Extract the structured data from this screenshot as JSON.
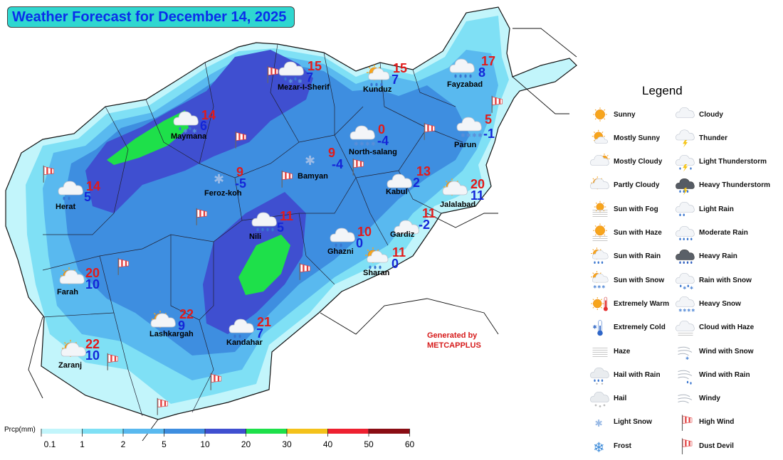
{
  "title": "Weather Forecast for December 14, 2025",
  "credit": {
    "line1": "Generated by",
    "line2": "METCAPPLUS"
  },
  "cities": [
    {
      "name": "Mezar-I-Sherif",
      "max": "15",
      "min": "7",
      "icon": "rain-with-snow-icon"
    },
    {
      "name": "Kunduz",
      "max": "15",
      "min": "7",
      "icon": "sun-with-rain-icon"
    },
    {
      "name": "Fayzabad",
      "max": "17",
      "min": "8",
      "icon": "moderate-rain-icon"
    },
    {
      "name": "Maymana",
      "max": "14",
      "min": "6",
      "icon": "rain-with-snow-icon"
    },
    {
      "name": "North-salang",
      "max": "0",
      "min": "-4",
      "icon": "heavy-snow-icon"
    },
    {
      "name": "Parun",
      "max": "5",
      "min": "-1",
      "icon": "heavy-snow-icon"
    },
    {
      "name": "Bamyan",
      "max": "9",
      "min": "-4",
      "icon": "light-snow-icon"
    },
    {
      "name": "Feroz-koh",
      "max": "9",
      "min": "-5",
      "icon": "light-snow-icon"
    },
    {
      "name": "Herat",
      "max": "14",
      "min": "5",
      "icon": "light-rain-icon"
    },
    {
      "name": "Kabul",
      "max": "13",
      "min": "2",
      "icon": "cloudy-icon"
    },
    {
      "name": "Jalalabad",
      "max": "20",
      "min": "11",
      "icon": "partly-cloudy-icon"
    },
    {
      "name": "Nili",
      "max": "11",
      "min": "5",
      "icon": "moderate-rain-icon"
    },
    {
      "name": "Gardiz",
      "max": "11",
      "min": "-2",
      "icon": "cloudy-icon"
    },
    {
      "name": "Ghazni",
      "max": "10",
      "min": "0",
      "icon": "light-rain-icon"
    },
    {
      "name": "Sharan",
      "max": "11",
      "min": "0",
      "icon": "sun-with-rain-icon"
    },
    {
      "name": "Farah",
      "max": "20",
      "min": "10",
      "icon": "partly-cloudy-icon"
    },
    {
      "name": "Lashkargah",
      "max": "22",
      "min": "9",
      "icon": "partly-cloudy-icon"
    },
    {
      "name": "Kandahar",
      "max": "21",
      "min": "7",
      "icon": "light-rain-icon"
    },
    {
      "name": "Zaranj",
      "max": "22",
      "min": "10",
      "icon": "partly-cloudy-icon"
    }
  ],
  "legend": {
    "title": "Legend",
    "items": [
      {
        "label": "Sunny",
        "icon": "sunny-icon"
      },
      {
        "label": "Cloudy",
        "icon": "cloudy-icon"
      },
      {
        "label": "Mostly Sunny",
        "icon": "mostly-sunny-icon"
      },
      {
        "label": "Thunder",
        "icon": "thunder-icon"
      },
      {
        "label": "Mostly Cloudy",
        "icon": "mostly-cloudy-icon"
      },
      {
        "label": "Light Thunderstorm",
        "icon": "light-thunderstorm-icon"
      },
      {
        "label": "Partly Cloudy",
        "icon": "partly-cloudy-icon"
      },
      {
        "label": "Heavy Thunderstorm",
        "icon": "heavy-thunderstorm-icon"
      },
      {
        "label": "Sun with Fog",
        "icon": "sun-with-fog-icon"
      },
      {
        "label": "Light Rain",
        "icon": "light-rain-icon"
      },
      {
        "label": "Sun with Haze",
        "icon": "sun-with-haze-icon"
      },
      {
        "label": "Moderate Rain",
        "icon": "moderate-rain-icon"
      },
      {
        "label": "Sun with Rain",
        "icon": "sun-with-rain-icon"
      },
      {
        "label": "Heavy Rain",
        "icon": "heavy-rain-icon"
      },
      {
        "label": "Sun with Snow",
        "icon": "sun-with-snow-icon"
      },
      {
        "label": "Rain with Snow",
        "icon": "rain-with-snow-icon"
      },
      {
        "label": "Extremely Warm",
        "icon": "extremely-warm-icon"
      },
      {
        "label": "Heavy Snow",
        "icon": "heavy-snow-icon"
      },
      {
        "label": "Extremely Cold",
        "icon": "extremely-cold-icon"
      },
      {
        "label": "Cloud with Haze",
        "icon": "cloud-with-haze-icon"
      },
      {
        "label": "Haze",
        "icon": "haze-icon"
      },
      {
        "label": "Wind with Snow",
        "icon": "wind-with-snow-icon"
      },
      {
        "label": "Hail with Rain",
        "icon": "hail-with-rain-icon"
      },
      {
        "label": "Wind with Rain",
        "icon": "wind-with-rain-icon"
      },
      {
        "label": "Hail",
        "icon": "hail-icon"
      },
      {
        "label": "Windy",
        "icon": "windy-icon"
      },
      {
        "label": "Light Snow",
        "icon": "light-snow-icon"
      },
      {
        "label": "High Wind",
        "icon": "high-wind-icon"
      },
      {
        "label": "Frost",
        "icon": "frost-icon"
      },
      {
        "label": "Dust Devil",
        "icon": "dust-devil-icon"
      }
    ]
  },
  "precip_scale": {
    "title": "Prcp(mm)",
    "ticks": [
      "0.1",
      "1",
      "2",
      "5",
      "10",
      "20",
      "30",
      "40",
      "50",
      "60"
    ],
    "colors": [
      "#c2f5fb",
      "#7fe0f5",
      "#59b9ef",
      "#3e8ee0",
      "#3f4fd0",
      "#1ee04a",
      "#f4c21a",
      "#ee2030",
      "#8a0d14"
    ]
  }
}
